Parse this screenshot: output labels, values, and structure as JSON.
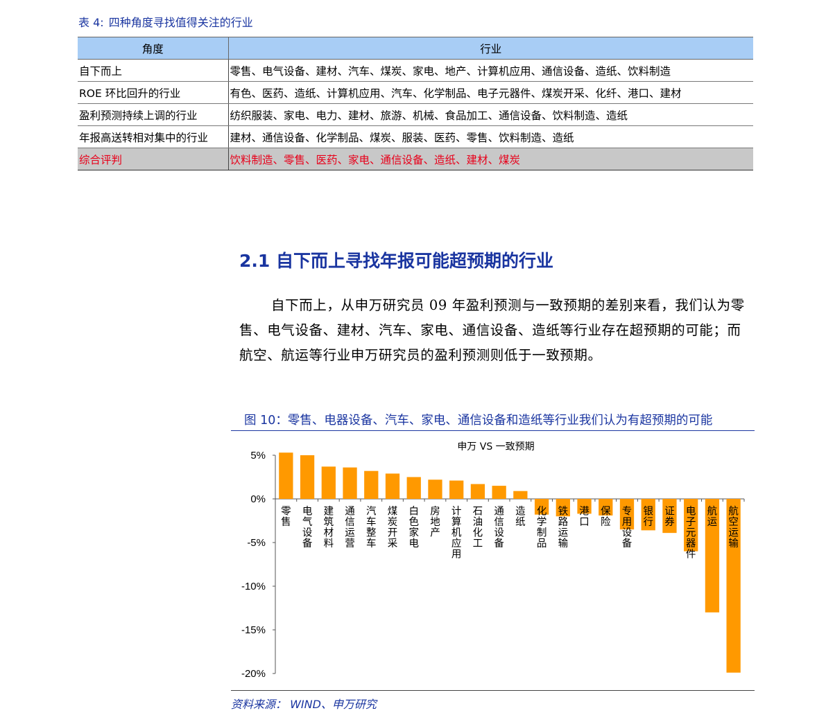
{
  "table": {
    "title_label": "表 4:",
    "title_text": "四种角度寻找值得关注的行业",
    "headers": [
      "角度",
      "行业"
    ],
    "rows": [
      [
        "自下而上",
        "零售、电气设备、建材、汽车、煤炭、家电、地产、计算机应用、通信设备、造纸、饮料制造"
      ],
      [
        "ROE 环比回升的行业",
        "有色、医药、造纸、计算机应用、汽车、化学制品、电子元器件、煤炭开采、化纤、港口、建材"
      ],
      [
        "盈利预测持续上调的行业",
        "纺织服装、家电、电力、建材、旅游、机械、食品加工、通信设备、饮料制造、造纸"
      ],
      [
        "年报高送转相对集中的行业",
        "建材、通信设备、化学制品、煤炭、服装、医药、零售、饮料制造、造纸"
      ]
    ],
    "summary": [
      "综合评判",
      "饮料制造、零售、医药、家电、通信设备、造纸、建材、煤炭"
    ]
  },
  "section_heading": "2.1 自下而上寻找年报可能超预期的行业",
  "paragraph": "自下而上，从申万研究员 09 年盈利预测与一致预期的差别来看，我们认为零售、电气设备、建材、汽车、家电、通信设备、造纸等行业存在超预期的可能；而航空、航运等行业申万研究员的盈利预测则低于一致预期。",
  "figure": {
    "title": "图 10：零售、电器设备、汽车、家电、通信设备和造纸等行业我们认为有超预期的可能",
    "source": "资料来源： WIND、申万研究"
  },
  "colors": {
    "accent": "#1a35a0",
    "bar": "#ff9900",
    "header_fill": "#a8cdf5",
    "summary_fill": "#c8c8c8",
    "summary_text": "#e8001a"
  },
  "chart_data": {
    "type": "bar",
    "title": "申万 VS 一致预期",
    "categories": [
      "零售",
      "电气设备",
      "建筑材料",
      "通信运营",
      "汽车整车",
      "煤炭开采",
      "白色家电",
      "房地产",
      "计算机应用",
      "石油化工",
      "通信设备",
      "造纸",
      "化学制品",
      "铁路运输",
      "港口",
      "保险",
      "专用设备",
      "银行",
      "证券",
      "电子元器件",
      "航运",
      "航空运输"
    ],
    "values": [
      5.3,
      5.0,
      3.7,
      3.6,
      3.2,
      2.9,
      2.5,
      2.2,
      2.1,
      1.7,
      1.5,
      0.9,
      -1.8,
      -2.0,
      -1.7,
      -1.9,
      -3.5,
      -3.6,
      -3.9,
      -6.0,
      -13.0,
      -19.9
    ],
    "yticks": [
      "5%",
      "0%",
      "-5%",
      "-10%",
      "-15%",
      "-20%"
    ],
    "ytick_values": [
      5,
      0,
      -5,
      -10,
      -15,
      -20
    ],
    "ylim": [
      -20,
      5
    ],
    "xlabel": "",
    "ylabel": "",
    "grid": false,
    "legend": "none"
  }
}
